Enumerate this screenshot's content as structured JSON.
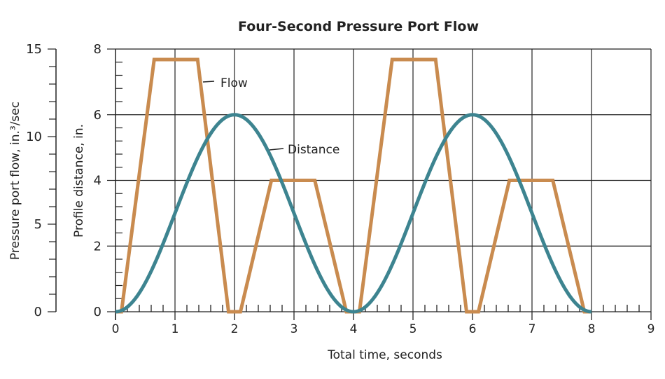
{
  "chart_data": {
    "type": "line",
    "title": "Four-Second Pressure Port Flow",
    "xlabel": "Total time, seconds",
    "ylabel_left": "Pressure port flow, in.³/sec",
    "ylabel_right": "Profile distance, in.",
    "xlim": [
      0,
      9
    ],
    "ylim_distance": [
      0,
      8
    ],
    "ylim_flow": [
      0,
      15
    ],
    "x_ticks": [
      "0",
      "1",
      "2",
      "3",
      "4",
      "5",
      "6",
      "7",
      "8",
      "9"
    ],
    "y_ticks_distance": [
      "0",
      "2",
      "4",
      "6",
      "8"
    ],
    "y_ticks_flow": [
      "0",
      "5",
      "10",
      "15"
    ],
    "grid": true,
    "series": [
      {
        "name": "Flow",
        "color": "#c98b4f",
        "axis": "flow",
        "x": [
          0.1,
          0.65,
          1.38,
          1.9,
          2.1,
          2.62,
          3.35,
          3.88,
          4.1,
          4.65,
          5.38,
          5.9,
          6.1,
          6.62,
          7.35,
          7.88,
          8.0
        ],
        "y": [
          0,
          14.4,
          14.4,
          0,
          0,
          7.5,
          7.5,
          0,
          0,
          14.4,
          14.4,
          0,
          0,
          7.5,
          7.5,
          0,
          0
        ]
      },
      {
        "name": "Distance",
        "color": "#3d8490",
        "axis": "distance",
        "function": "3 - 3*cos(pi*t/2)",
        "x_range": [
          0,
          8
        ],
        "peak": 6
      }
    ]
  }
}
